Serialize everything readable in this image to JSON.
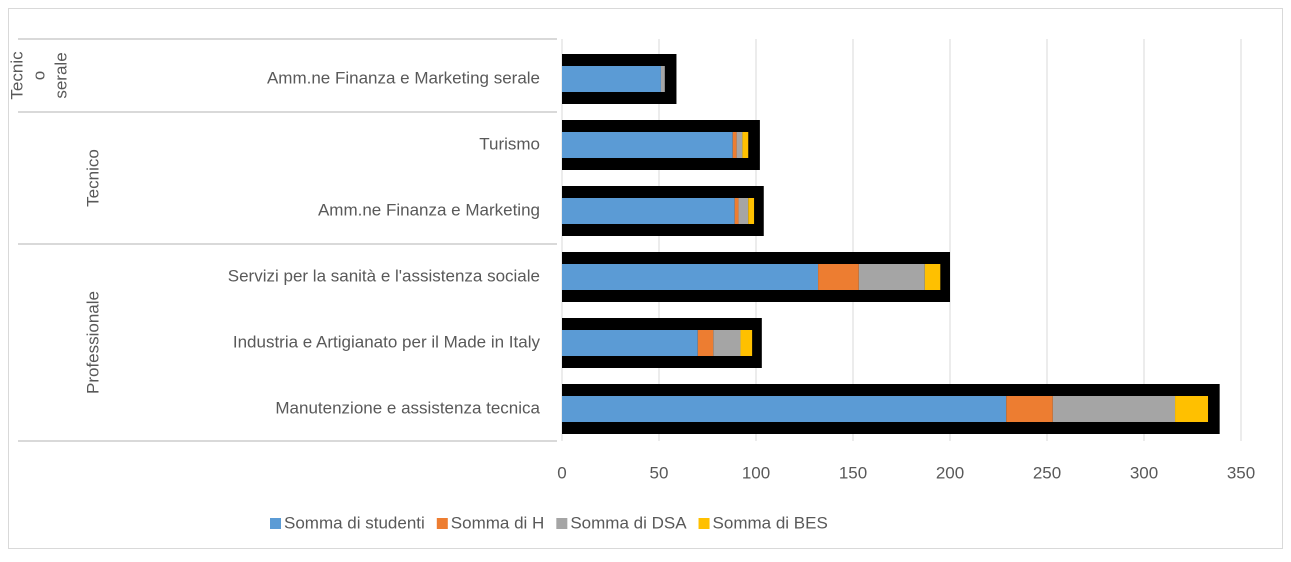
{
  "chart_data": {
    "type": "stacked_barh",
    "categories": [
      "Amm.ne Finanza e Marketing serale",
      "Turismo",
      "Amm.ne Finanza e Marketing",
      "Servizi per la sanità e l'assistenza sociale",
      "Industria e Artigianato per il Made in Italy",
      "Manutenzione e assistenza tecnica"
    ],
    "groups": [
      {
        "name": [
          "Tecnic",
          "o",
          "serale"
        ],
        "count": 1
      },
      {
        "name": [
          "Tecnico"
        ],
        "count": 2
      },
      {
        "name": [
          "Professionale"
        ],
        "count": 3
      }
    ],
    "series": [
      {
        "name": "Somma di studenti",
        "color": "#5b9bd5",
        "values": [
          51,
          88,
          89,
          132,
          70,
          229
        ]
      },
      {
        "name": "Somma di H",
        "color": "#ed7d31",
        "values": [
          0,
          2,
          2,
          21,
          8,
          24
        ]
      },
      {
        "name": "Somma di DSA",
        "color": "#a5a5a5",
        "values": [
          2,
          3,
          5,
          34,
          14,
          63
        ]
      },
      {
        "name": "Somma di BES",
        "color": "#ffc000",
        "values": [
          0,
          3,
          3,
          8,
          6,
          17
        ]
      }
    ],
    "background_bar": {
      "color": "#000000",
      "values": [
        59,
        102,
        104,
        200,
        103,
        339
      ]
    },
    "xlim": [
      0,
      350
    ],
    "xticks": [
      0,
      50,
      100,
      150,
      200,
      250,
      300,
      350
    ],
    "grid": true,
    "legend": "bottom"
  }
}
